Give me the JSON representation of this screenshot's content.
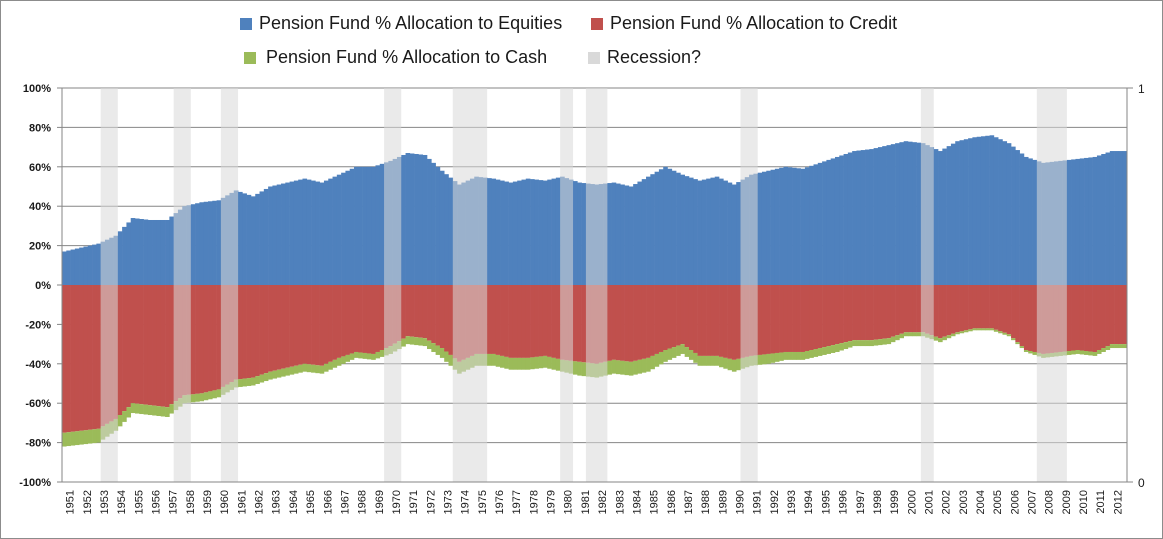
{
  "chart_data": {
    "type": "bar",
    "stacked": true,
    "frequency": "quarterly",
    "title": "",
    "xlabel": "",
    "ylabel": "",
    "ylim": [
      -1.0,
      1.0
    ],
    "y2lim": [
      0,
      1
    ],
    "grid": true,
    "legend_position": "top",
    "y_ticks": [
      "100%",
      "80%",
      "60%",
      "40%",
      "20%",
      "0%",
      "-20%",
      "-40%",
      "-60%",
      "-80%",
      "-100%"
    ],
    "y_tick_values": [
      1.0,
      0.8,
      0.6,
      0.4,
      0.2,
      0.0,
      -0.2,
      -0.4,
      -0.6,
      -0.8,
      -1.0
    ],
    "y2_ticks": [
      "1",
      "0"
    ],
    "categories": [
      "1951",
      "1952",
      "1953",
      "1954",
      "1955",
      "1956",
      "1957",
      "1958",
      "1959",
      "1960",
      "1961",
      "1962",
      "1963",
      "1964",
      "1965",
      "1966",
      "1967",
      "1968",
      "1969",
      "1970",
      "1971",
      "1972",
      "1973",
      "1974",
      "1975",
      "1976",
      "1977",
      "1978",
      "1979",
      "1980",
      "1981",
      "1982",
      "1983",
      "1984",
      "1985",
      "1986",
      "1987",
      "1988",
      "1989",
      "1990",
      "1991",
      "1992",
      "1993",
      "1994",
      "1995",
      "1996",
      "1997",
      "1998",
      "1999",
      "2000",
      "2001",
      "2002",
      "2003",
      "2004",
      "2005",
      "2006",
      "2007",
      "2008",
      "2009",
      "2010",
      "2011",
      "2012"
    ],
    "series": [
      {
        "name": "Pension Fund % Allocation to Equities",
        "color": "#4f81bd",
        "values": [
          0.17,
          0.19,
          0.21,
          0.25,
          0.34,
          0.33,
          0.33,
          0.4,
          0.42,
          0.43,
          0.48,
          0.45,
          0.5,
          0.52,
          0.54,
          0.52,
          0.56,
          0.6,
          0.6,
          0.63,
          0.67,
          0.66,
          0.58,
          0.51,
          0.55,
          0.54,
          0.52,
          0.54,
          0.53,
          0.55,
          0.52,
          0.51,
          0.52,
          0.5,
          0.55,
          0.6,
          0.56,
          0.53,
          0.55,
          0.51,
          0.56,
          0.58,
          0.6,
          0.59,
          0.62,
          0.65,
          0.68,
          0.69,
          0.71,
          0.73,
          0.72,
          0.68,
          0.73,
          0.75,
          0.76,
          0.72,
          0.65,
          0.62,
          0.63,
          0.64,
          0.65,
          0.68
        ]
      },
      {
        "name": "Pension Fund % Allocation to Credit",
        "color": "#c0504d",
        "values": [
          -0.75,
          -0.74,
          -0.73,
          -0.68,
          -0.6,
          -0.61,
          -0.62,
          -0.56,
          -0.55,
          -0.53,
          -0.48,
          -0.47,
          -0.44,
          -0.42,
          -0.4,
          -0.41,
          -0.37,
          -0.34,
          -0.35,
          -0.31,
          -0.26,
          -0.27,
          -0.32,
          -0.39,
          -0.35,
          -0.35,
          -0.37,
          -0.37,
          -0.36,
          -0.38,
          -0.39,
          -0.4,
          -0.38,
          -0.39,
          -0.37,
          -0.33,
          -0.3,
          -0.36,
          -0.36,
          -0.38,
          -0.36,
          -0.35,
          -0.34,
          -0.34,
          -0.32,
          -0.3,
          -0.28,
          -0.28,
          -0.27,
          -0.24,
          -0.24,
          -0.27,
          -0.24,
          -0.22,
          -0.22,
          -0.25,
          -0.33,
          -0.35,
          -0.34,
          -0.33,
          -0.34,
          -0.3
        ]
      },
      {
        "name": "Pension Fund % Allocation to Cash",
        "color": "#9bbb59",
        "values": [
          -0.07,
          -0.07,
          -0.07,
          -0.06,
          -0.05,
          -0.05,
          -0.05,
          -0.04,
          -0.04,
          -0.04,
          -0.04,
          -0.04,
          -0.04,
          -0.04,
          -0.04,
          -0.04,
          -0.04,
          -0.03,
          -0.03,
          -0.04,
          -0.04,
          -0.04,
          -0.05,
          -0.06,
          -0.06,
          -0.06,
          -0.06,
          -0.06,
          -0.06,
          -0.06,
          -0.07,
          -0.07,
          -0.07,
          -0.07,
          -0.07,
          -0.06,
          -0.05,
          -0.05,
          -0.05,
          -0.06,
          -0.05,
          -0.05,
          -0.04,
          -0.04,
          -0.04,
          -0.04,
          -0.03,
          -0.03,
          -0.03,
          -0.02,
          -0.02,
          -0.02,
          -0.01,
          -0.01,
          -0.01,
          -0.01,
          -0.01,
          -0.02,
          -0.02,
          -0.02,
          -0.02,
          -0.02
        ]
      },
      {
        "name": "Recession?",
        "color": "#d9d9d9",
        "axis": "secondary",
        "periods": [
          [
            1953.25,
            1954.25
          ],
          [
            1957.5,
            1958.5
          ],
          [
            1960.25,
            1961.25
          ],
          [
            1969.75,
            1970.75
          ],
          [
            1973.75,
            1975.75
          ],
          [
            1980.0,
            1980.75
          ],
          [
            1981.5,
            1982.75
          ],
          [
            1990.5,
            1991.5
          ],
          [
            2001.0,
            2001.75
          ],
          [
            2007.75,
            2009.5
          ]
        ]
      }
    ]
  }
}
